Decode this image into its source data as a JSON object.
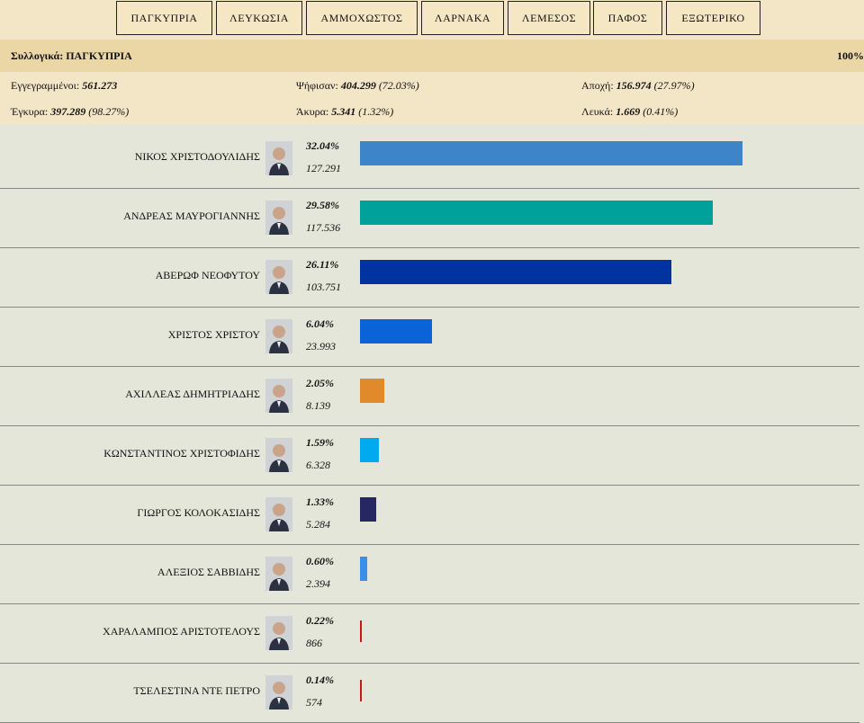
{
  "tabs": [
    {
      "label": "ΠΑΓΚΥΠΡΙΑ"
    },
    {
      "label": "ΛΕΥΚΩΣΙΑ"
    },
    {
      "label": "ΑΜΜΟΧΩΣΤΟΣ"
    },
    {
      "label": "ΛΑΡΝΑΚΑ"
    },
    {
      "label": "ΛΕΜΕΣΟΣ"
    },
    {
      "label": "ΠΑΦΟΣ"
    },
    {
      "label": "ΕΞΩΤΕΡΙΚΟ"
    }
  ],
  "summary": {
    "title": "Συλλογικά: ΠΑΓΚΥΠΡΙΑ",
    "counted_pct": "100%"
  },
  "stats": {
    "registered": {
      "label": "Εγγεγραμμένοι:",
      "value": "561.273",
      "pct": ""
    },
    "voted": {
      "label": "Ψήφισαν:",
      "value": "404.299",
      "pct": "(72.03%)"
    },
    "abstention": {
      "label": "Αποχή:",
      "value": "156.974",
      "pct": "(27.97%)"
    },
    "valid": {
      "label": "Έγκυρα:",
      "value": "397.289",
      "pct": "(98.27%)"
    },
    "invalid": {
      "label": "Άκυρα:",
      "value": "5.341",
      "pct": "(1.32%)"
    },
    "blank": {
      "label": "Λευκά:",
      "value": "1.669",
      "pct": "(0.41%)"
    }
  },
  "candidates": [
    {
      "name": "ΝΙΚΟΣ ΧΡΙΣΤΟΔΟΥΛΙΔΗΣ",
      "pct_label": "32.04%",
      "votes": "127.291",
      "share": 32.04,
      "color": "#3d84c8"
    },
    {
      "name": "ΑΝΔΡΕΑΣ ΜΑΥΡΟΓΙΑΝΝΗΣ",
      "pct_label": "29.58%",
      "votes": "117.536",
      "share": 29.58,
      "color": "#00a19a"
    },
    {
      "name": "ΑΒΕΡΩΦ ΝΕΟΦΥΤΟΥ",
      "pct_label": "26.11%",
      "votes": "103.751",
      "share": 26.11,
      "color": "#0033a0"
    },
    {
      "name": "ΧΡΙΣΤΟΣ ΧΡΙΣΤΟΥ",
      "pct_label": "6.04%",
      "votes": "23.993",
      "share": 6.04,
      "color": "#0b63d8"
    },
    {
      "name": "ΑΧΙΛΛΕΑΣ ΔΗΜΗΤΡΙΑΔΗΣ",
      "pct_label": "2.05%",
      "votes": "8.139",
      "share": 2.05,
      "color": "#e08a2c"
    },
    {
      "name": "ΚΩΝΣΤΑΝΤΙΝΟΣ ΧΡΙΣΤΟΦΙΔΗΣ",
      "pct_label": "1.59%",
      "votes": "6.328",
      "share": 1.59,
      "color": "#00aaee"
    },
    {
      "name": "ΓΙΩΡΓΟΣ ΚΟΛΟΚΑΣΙΔΗΣ",
      "pct_label": "1.33%",
      "votes": "5.284",
      "share": 1.33,
      "color": "#272863"
    },
    {
      "name": "ΑΛΕΞΙΟΣ ΣΑΒΒΙΔΗΣ",
      "pct_label": "0.60%",
      "votes": "2.394",
      "share": 0.6,
      "color": "#3a8fe8"
    },
    {
      "name": "ΧΑΡΑΛΑΜΠΟΣ ΑΡΙΣΤΟΤΕΛΟΥΣ",
      "pct_label": "0.22%",
      "votes": "866",
      "share": 0.22,
      "color": "#c8161d"
    },
    {
      "name": "ΤΣΕΛΕΣΤΙΝΑ ΝΤΕ ΠΕΤΡΟ",
      "pct_label": "0.14%",
      "votes": "574",
      "share": 0.14,
      "color": "#c8161d"
    }
  ],
  "chart_data": {
    "type": "bar",
    "categories": [
      "ΝΙΚΟΣ ΧΡΙΣΤΟΔΟΥΛΙΔΗΣ",
      "ΑΝΔΡΕΑΣ ΜΑΥΡΟΓΙΑΝΝΗΣ",
      "ΑΒΕΡΩΦ ΝΕΟΦΥΤΟΥ",
      "ΧΡΙΣΤΟΣ ΧΡΙΣΤΟΥ",
      "ΑΧΙΛΛΕΑΣ ΔΗΜΗΤΡΙΑΔΗΣ",
      "ΚΩΝΣΤΑΝΤΙΝΟΣ ΧΡΙΣΤΟΦΙΔΗΣ",
      "ΓΙΩΡΓΟΣ ΚΟΛΟΚΑΣΙΔΗΣ",
      "ΑΛΕΞΙΟΣ ΣΑΒΒΙΔΗΣ",
      "ΧΑΡΑΛΑΜΠΟΣ ΑΡΙΣΤΟΤΕΛΟΥΣ",
      "ΤΣΕΛΕΣΤΙΝΑ ΝΤΕ ΠΕΤΡΟ"
    ],
    "values": [
      32.04,
      29.58,
      26.11,
      6.04,
      2.05,
      1.59,
      1.33,
      0.6,
      0.22,
      0.14
    ]
  }
}
